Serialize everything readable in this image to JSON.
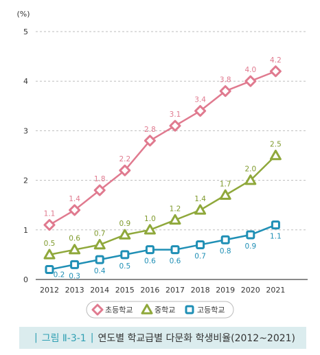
{
  "chart_data": {
    "type": "line",
    "unit_label": "(%)",
    "x": [
      "2012",
      "2013",
      "2014",
      "2015",
      "2016",
      "2017",
      "2018",
      "2019",
      "2020",
      "2021"
    ],
    "ylim": [
      0,
      5
    ],
    "yticks": [
      "0",
      "1",
      "2",
      "3",
      "4",
      "5"
    ],
    "grid": true,
    "legend_position": "bottom",
    "series": [
      {
        "name": "초등학교",
        "color": "#e07a8f",
        "marker": "diamond",
        "values": [
          1.1,
          1.4,
          1.8,
          2.2,
          2.8,
          3.1,
          3.4,
          3.8,
          4.0,
          4.2
        ],
        "labels": [
          "1.1",
          "1.4",
          "1.8",
          "2.2",
          "2.8",
          "3.1",
          "3.4",
          "3.8",
          "4.0",
          "4.2"
        ]
      },
      {
        "name": "중학교",
        "color": "#8fa83b",
        "marker": "triangle",
        "values": [
          0.5,
          0.6,
          0.7,
          0.9,
          1.0,
          1.2,
          1.4,
          1.7,
          2.0,
          2.5
        ],
        "labels": [
          "0.5",
          "0.6",
          "0.7",
          "0.9",
          "1.0",
          "1.2",
          "1.4",
          "1.7",
          "2.0",
          "2.5"
        ]
      },
      {
        "name": "고등학교",
        "color": "#1f8fb5",
        "marker": "square",
        "values": [
          0.2,
          0.3,
          0.4,
          0.5,
          0.6,
          0.6,
          0.7,
          0.8,
          0.9,
          1.1
        ],
        "labels": [
          "0.2",
          "0.3",
          "0.4",
          "0.5",
          "0.6",
          "0.6",
          "0.7",
          "0.8",
          "0.9",
          "1.1"
        ]
      }
    ]
  },
  "caption": {
    "figure_no": "그림 Ⅱ-3-1",
    "separator": "|",
    "title": "연도별 학교급별 다문화 학생비율(2012~2021)"
  }
}
